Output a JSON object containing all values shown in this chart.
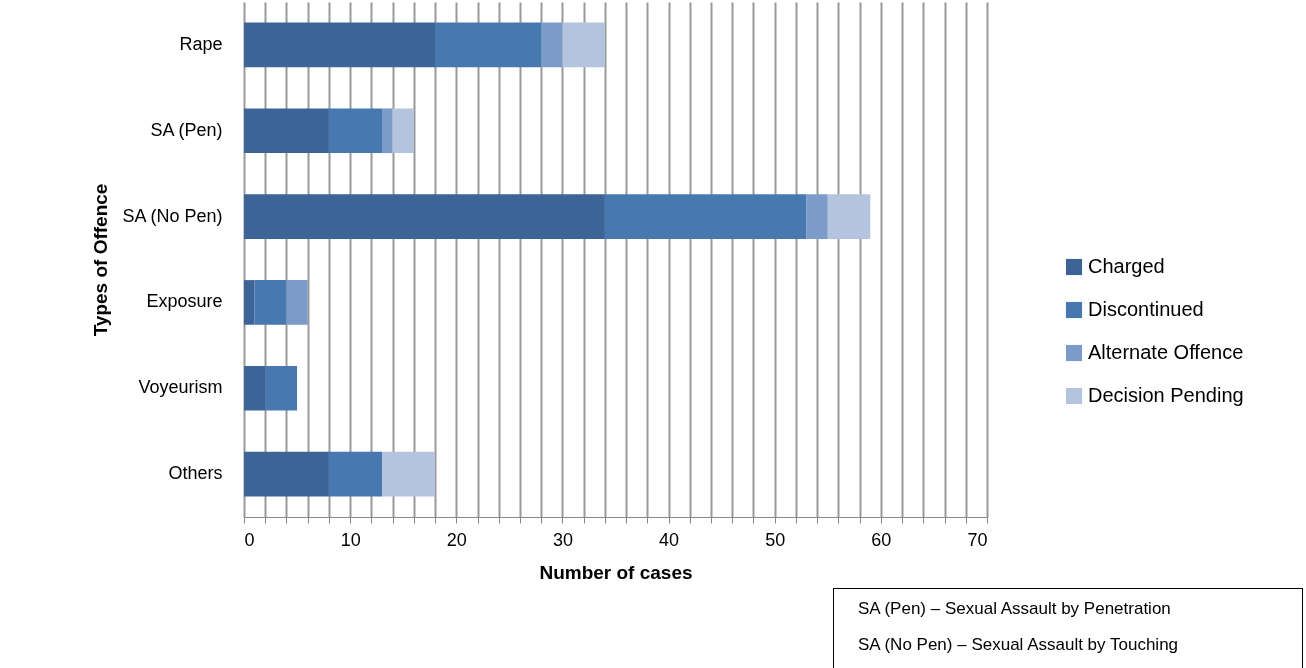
{
  "chart_data": {
    "type": "bar",
    "orientation": "horizontal",
    "stacked": true,
    "xlabel": "Number of cases",
    "ylabel": "Types of Offence",
    "categories": [
      "Rape",
      "SA (Pen)",
      "SA (No Pen)",
      "Exposure",
      "Voyeurism",
      "Others"
    ],
    "series": [
      {
        "name": "Charged",
        "color": "#3c6496",
        "values": [
          18,
          8,
          34,
          1,
          2,
          8
        ]
      },
      {
        "name": "Discontinued",
        "color": "#4878b0",
        "values": [
          10,
          5,
          19,
          3,
          3,
          5
        ]
      },
      {
        "name": "Alternate Offence",
        "color": "#7b9bc8",
        "values": [
          2,
          1,
          2,
          2,
          0,
          0
        ]
      },
      {
        "name": "Decision Pending",
        "color": "#b4c3de",
        "values": [
          4,
          2,
          4,
          0,
          0,
          5
        ]
      }
    ],
    "xlim": [
      0,
      70
    ],
    "xticks": [
      0,
      {
        "value": 2,
        "label": null
      },
      {
        "value": 4,
        "label": null
      },
      {
        "value": 6,
        "label": null
      },
      {
        "value": 8,
        "label": null
      },
      10,
      {
        "value": 12,
        "label": null
      },
      {
        "value": 14,
        "label": null
      },
      {
        "value": 16,
        "label": null
      },
      {
        "value": 18,
        "label": null
      },
      20,
      {
        "value": 22,
        "label": null
      },
      {
        "value": 24,
        "label": null
      },
      {
        "value": 26,
        "label": null
      },
      {
        "value": 28,
        "label": null
      },
      30,
      {
        "value": 32,
        "label": null
      },
      {
        "value": 34,
        "label": null
      },
      {
        "value": 36,
        "label": null
      },
      {
        "value": 38,
        "label": null
      },
      40,
      {
        "value": 42,
        "label": null
      },
      {
        "value": 44,
        "label": null
      },
      {
        "value": 46,
        "label": null
      },
      {
        "value": 48,
        "label": null
      },
      50,
      {
        "value": 52,
        "label": null
      },
      {
        "value": 54,
        "label": null
      },
      {
        "value": 56,
        "label": null
      },
      {
        "value": 58,
        "label": null
      },
      60,
      {
        "value": 62,
        "label": null
      },
      {
        "value": 64,
        "label": null
      },
      {
        "value": 66,
        "label": null
      },
      {
        "value": 68,
        "label": null
      },
      70
    ],
    "grid": "x",
    "legend": "right",
    "annotations": [
      "SA (Pen) – Sexual Assault by Penetration",
      "SA (No Pen) – Sexual Assault by Touching"
    ]
  }
}
